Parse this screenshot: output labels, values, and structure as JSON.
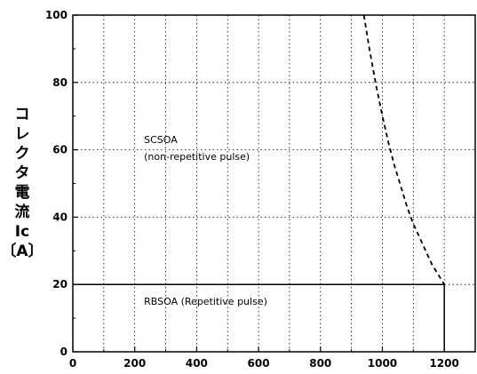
{
  "chart_data": {
    "type": "line",
    "title": "",
    "xlabel": "",
    "ylabel_chars": [
      "コ",
      "レ",
      "ク",
      "タ",
      "電",
      "流",
      "Ic",
      "〔A〕"
    ],
    "xlim": [
      0,
      1300
    ],
    "ylim": [
      0,
      100
    ],
    "x_ticks": [
      0,
      200,
      400,
      600,
      800,
      1000,
      1200
    ],
    "y_ticks": [
      0,
      20,
      40,
      60,
      80,
      100
    ],
    "grid": true,
    "series": [
      {
        "style": "dashed",
        "x": [
          940,
          960,
          980,
          1000,
          1020,
          1040,
          1060,
          1080,
          1100,
          1120,
          1140,
          1160,
          1180,
          1200
        ],
        "y": [
          100,
          89,
          79,
          70,
          62,
          55,
          49,
          43,
          38,
          34,
          30,
          26,
          23,
          20
        ]
      },
      {
        "style": "solid",
        "x": [
          0,
          1200,
          1200
        ],
        "y": [
          20,
          20,
          0
        ]
      }
    ],
    "annotations": [
      {
        "text": "SCSOA",
        "x": 230,
        "y": 63
      },
      {
        "text": "(non-repetitive pulse)",
        "x": 230,
        "y": 58
      },
      {
        "text": "RBSOA (Repetitive pulse)",
        "x": 230,
        "y": 15
      }
    ]
  }
}
